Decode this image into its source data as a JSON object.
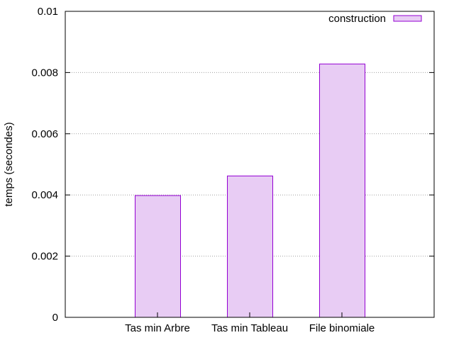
{
  "chart_data": {
    "type": "bar",
    "categories": [
      "Tas min Arbre",
      "Tas min Tableau",
      "File binomiale"
    ],
    "series": [
      {
        "name": "construction",
        "values": [
          0.00398,
          0.00462,
          0.00828
        ]
      }
    ],
    "ylabel": "temps (secondes)",
    "ylim": [
      0,
      0.01
    ],
    "yticks": [
      "0",
      "0.002",
      "0.004",
      "0.006",
      "0.008",
      "0.01"
    ],
    "grid": true,
    "legend_position": "top-right",
    "colors": {
      "bar_fill": "#e8ccf4",
      "bar_stroke": "#9400d3",
      "grid": "#a0a0a0",
      "axis": "#000000"
    }
  }
}
